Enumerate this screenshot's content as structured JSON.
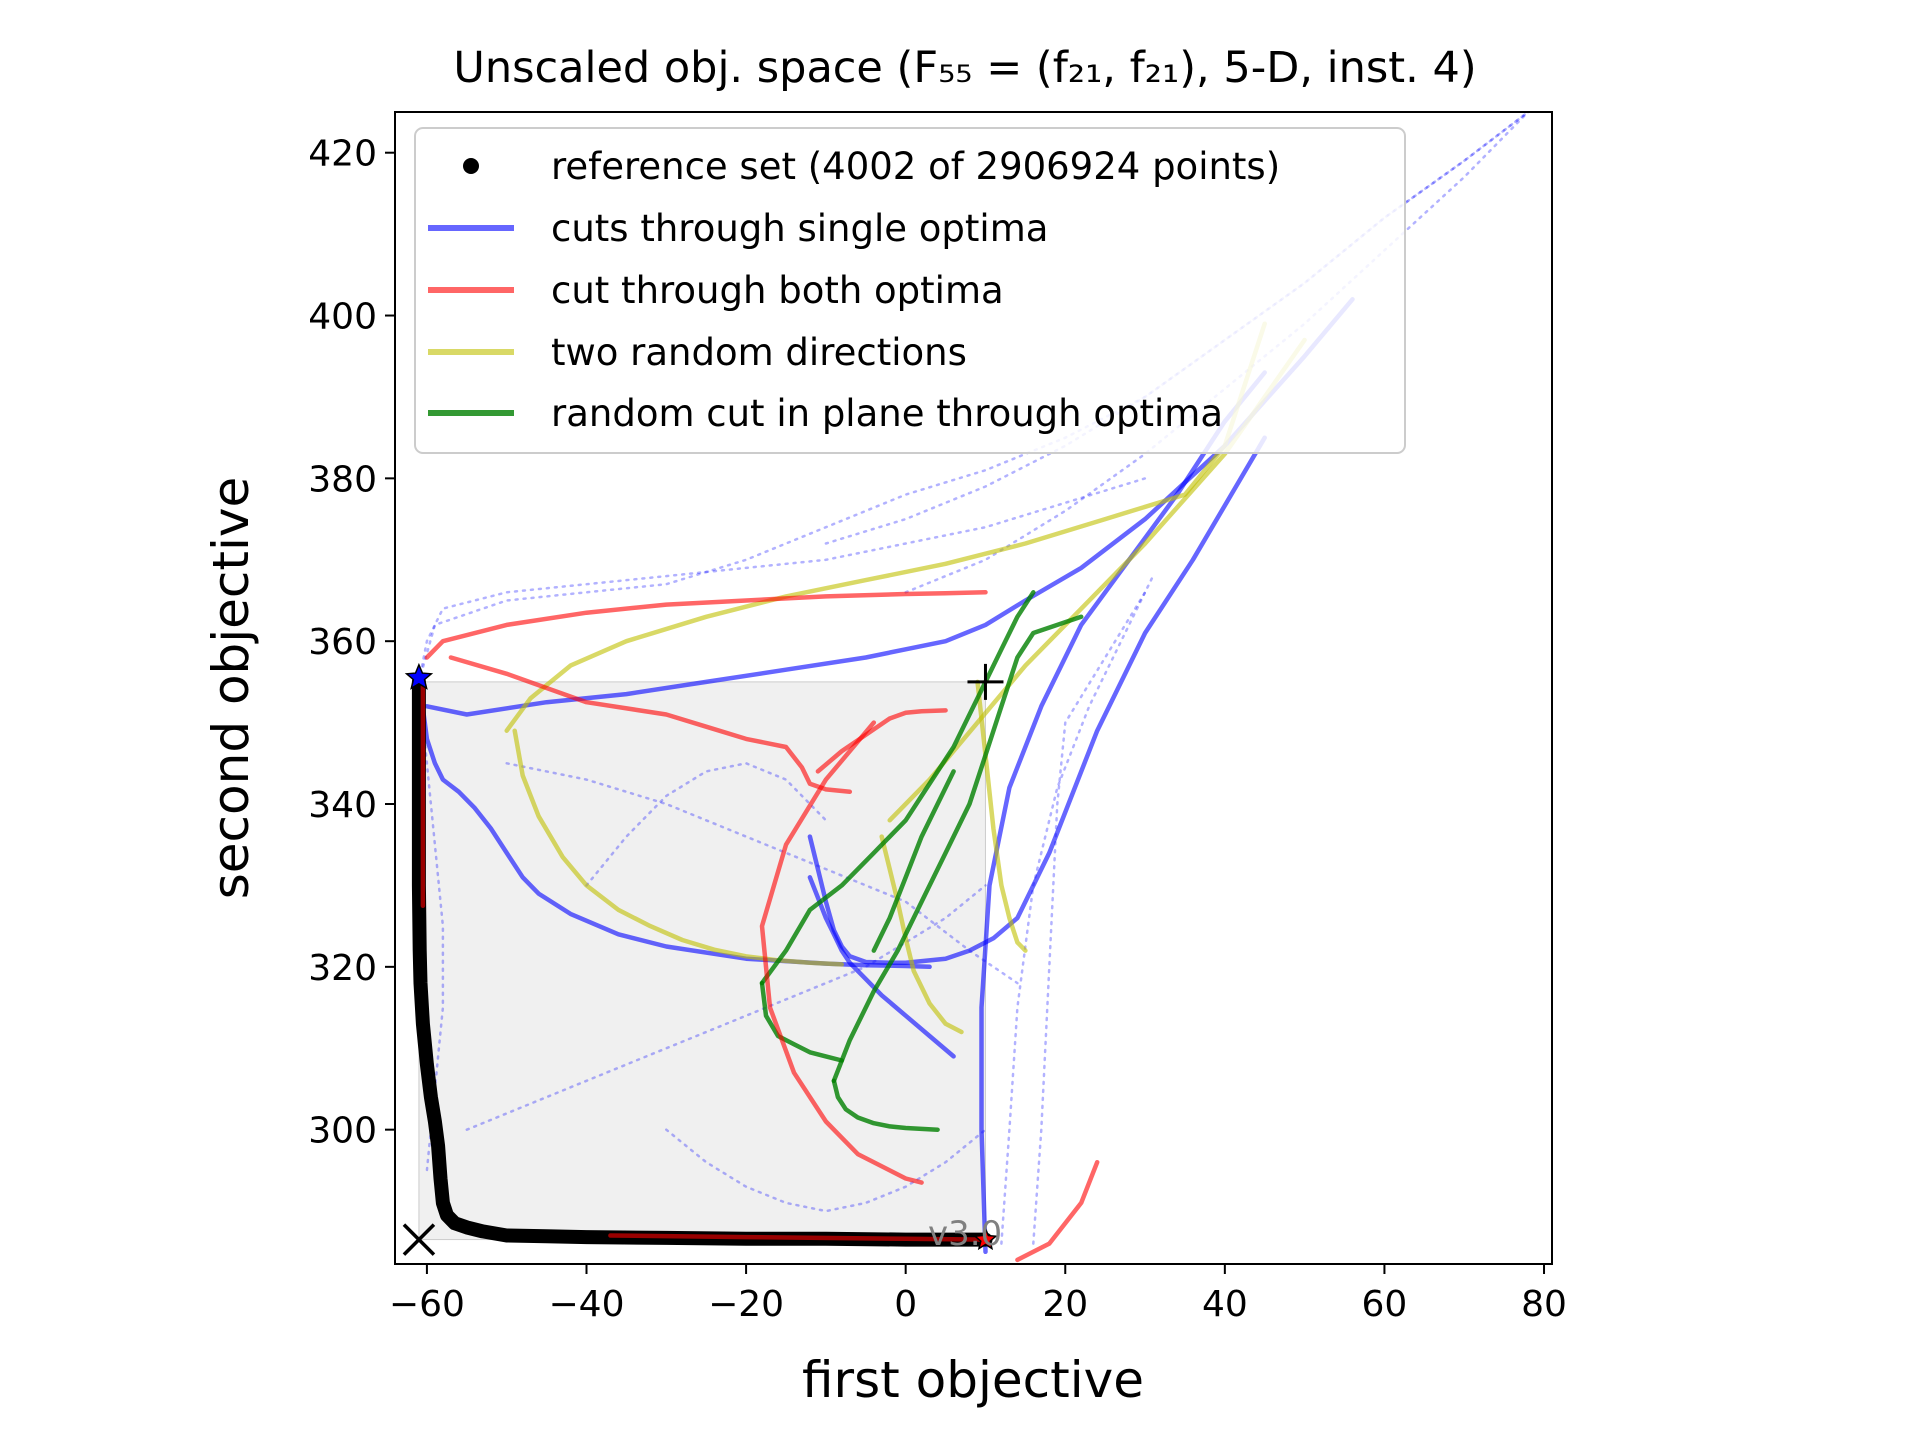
{
  "chart_data": {
    "type": "line",
    "title": "Unscaled obj. space (F₅₅ = (f₂₁, f₂₁), 5-D, inst. 4)",
    "xlabel": "first objective",
    "ylabel": "second objective",
    "xlim": [
      -64,
      81
    ],
    "ylim": [
      283.5,
      425
    ],
    "xticks": [
      -60,
      -40,
      -20,
      0,
      20,
      40,
      60,
      80
    ],
    "xtick_labels": [
      "−60",
      "−40",
      "−20",
      "0",
      "20",
      "40",
      "60",
      "80"
    ],
    "yticks": [
      300,
      320,
      340,
      360,
      380,
      400,
      420
    ],
    "ytick_labels": [
      "300",
      "320",
      "340",
      "360",
      "380",
      "400",
      "420"
    ],
    "grid": false,
    "legend_position": "top",
    "version_text": "v3.0",
    "colors": {
      "reference": "#000000",
      "single_optima": "#0000ff",
      "both_optima": "#ff0000",
      "random_directions": "#bfbf00",
      "plane_cut": "#008000",
      "background_cuts": "#0000ff",
      "dominated_region": "#f0f0f0"
    },
    "legend": [
      {
        "label": "reference set (4002 of 2906924 points)",
        "kind": "dot",
        "color": "#000000"
      },
      {
        "label": "cuts through single optima",
        "kind": "line",
        "color": "#0000ff"
      },
      {
        "label": "cut through both optima",
        "kind": "line",
        "color": "#ff0000"
      },
      {
        "label": "two random directions",
        "kind": "line",
        "color": "#bfbf00"
      },
      {
        "label": "random cut in plane through optima",
        "kind": "line",
        "color": "#008000"
      }
    ],
    "markers": {
      "ideal_point": [
        -61,
        286.5
      ],
      "nadir_point": [
        10,
        355
      ],
      "optimum_1": [
        -61,
        355.5
      ],
      "optimum_2": [
        10,
        286.5
      ]
    },
    "dominated_region": {
      "x": [
        -61,
        10
      ],
      "y": [
        286.5,
        355
      ]
    },
    "series": [
      {
        "name": "reference set (4002 of 2906924 points)",
        "role": "reference",
        "x": [
          -61,
          -61,
          -61,
          -60.9,
          -60.8,
          -60.5,
          -60,
          -59.5,
          -59,
          -58.6,
          -58.3,
          -58,
          -57.5,
          -56.5,
          -55,
          -53,
          -50,
          -45,
          -40,
          -30,
          -20,
          -10,
          0,
          5,
          10
        ],
        "y": [
          355,
          345,
          330,
          322,
          318,
          313,
          308,
          304,
          301,
          298,
          294,
          291,
          289.5,
          288.5,
          288,
          287.5,
          287,
          286.9,
          286.8,
          286.7,
          286.6,
          286.6,
          286.5,
          286.5,
          286.5
        ]
      },
      {
        "role": "both_optima",
        "x": [
          -60.5,
          -60.5,
          -60.5
        ],
        "y": [
          355,
          340,
          327.5
        ]
      },
      {
        "role": "both_optima",
        "x": [
          -37,
          -20,
          0,
          10
        ],
        "y": [
          287,
          286.8,
          286.6,
          286.5
        ]
      },
      {
        "role": "both_optima",
        "x": [
          -60,
          -58,
          -50,
          -40,
          -30,
          -20,
          -10,
          0,
          5,
          10
        ],
        "y": [
          358,
          360,
          362,
          363.5,
          364.5,
          365,
          365.5,
          365.8,
          365.9,
          366
        ]
      },
      {
        "role": "both_optima",
        "x": [
          -57,
          -50,
          -40,
          -30,
          -25,
          -20,
          -15,
          -13,
          -12,
          -10,
          -7
        ],
        "y": [
          358,
          356,
          352.5,
          351,
          349.5,
          348,
          347,
          344.5,
          342.5,
          341.8,
          341.5
        ]
      },
      {
        "role": "both_optima",
        "x": [
          -11,
          -8,
          -5,
          -2,
          0,
          2,
          5
        ],
        "y": [
          344,
          346.5,
          348.5,
          350.5,
          351.2,
          351.4,
          351.5
        ]
      },
      {
        "role": "both_optima",
        "x": [
          -4,
          -10,
          -15,
          -18,
          -17,
          -14,
          -10,
          -6,
          0,
          2
        ],
        "y": [
          350,
          343,
          335,
          325,
          315,
          307,
          301,
          297,
          294,
          293.5
        ]
      },
      {
        "role": "both_optima",
        "x": [
          14,
          18,
          22,
          24
        ],
        "y": [
          284,
          286,
          291,
          296
        ]
      },
      {
        "role": "single_optima",
        "x": [
          -61,
          -60,
          -59,
          -58,
          -56,
          -54,
          -52,
          -50,
          -48,
          -46,
          -42,
          -36,
          -30,
          -20,
          -10,
          -5,
          0,
          3
        ],
        "y": [
          355.5,
          348,
          345,
          343,
          341.5,
          339.5,
          337,
          334,
          331,
          329,
          326.5,
          324,
          322.5,
          321,
          320.4,
          320.2,
          320.1,
          320
        ]
      },
      {
        "role": "single_optima",
        "x": [
          -12,
          -11,
          -10,
          -9,
          -8,
          -7,
          -5,
          -3,
          0,
          3,
          6
        ],
        "y": [
          331,
          328.5,
          326,
          324,
          322,
          320.5,
          318.5,
          316.5,
          314,
          311.5,
          309
        ]
      },
      {
        "role": "single_optima",
        "x": [
          -60,
          -55,
          -45,
          -35,
          -25,
          -15,
          -5,
          0,
          5,
          10,
          15,
          22,
          30,
          40,
          50,
          56
        ],
        "y": [
          352,
          351,
          352.5,
          353.5,
          355,
          356.5,
          358,
          359,
          360,
          362,
          365,
          369,
          375,
          384,
          395,
          402
        ]
      },
      {
        "role": "single_optima",
        "x": [
          -12,
          -11,
          -10,
          -9,
          -8,
          -7,
          -5,
          -2,
          0,
          5,
          8,
          11,
          14,
          18,
          24,
          30,
          36,
          42,
          45
        ],
        "y": [
          336,
          332,
          328,
          324.5,
          322.5,
          321.3,
          320.6,
          320.5,
          320.5,
          321,
          322,
          323.5,
          326,
          334,
          349,
          361,
          370,
          380,
          385
        ]
      },
      {
        "role": "single_optima",
        "x": [
          10,
          9.5,
          9.5,
          10.5,
          13,
          17,
          22,
          28,
          34,
          40,
          45
        ],
        "y": [
          285,
          300,
          315,
          330,
          342,
          352,
          362,
          370,
          378,
          387,
          393
        ]
      },
      {
        "role": "random_directions",
        "x": [
          -49,
          -48,
          -46,
          -43,
          -40,
          -36,
          -32,
          -28,
          -24,
          -20,
          -16,
          -12,
          -8
        ],
        "y": [
          349,
          343.5,
          338.5,
          333.5,
          330,
          327,
          325,
          323.3,
          322.1,
          321.3,
          320.8,
          320.5,
          320.3
        ]
      },
      {
        "role": "random_directions",
        "x": [
          -3,
          -2,
          -1,
          0,
          1,
          3,
          5,
          7
        ],
        "y": [
          336,
          332,
          328,
          323.5,
          319.5,
          315.5,
          313,
          312
        ]
      },
      {
        "role": "random_directions",
        "x": [
          -50,
          -47,
          -42,
          -35,
          -25,
          -15,
          -5,
          5,
          15,
          25,
          35,
          40,
          45
        ],
        "y": [
          349,
          353,
          357,
          360,
          363,
          365.5,
          367.5,
          369.5,
          372,
          375,
          378,
          384,
          399
        ]
      },
      {
        "role": "random_directions",
        "x": [
          -2,
          0,
          3,
          6,
          9,
          12,
          15,
          20,
          30,
          40,
          50
        ],
        "y": [
          338,
          340,
          343,
          346.5,
          350,
          353.5,
          357,
          362,
          372,
          383,
          397
        ]
      },
      {
        "role": "random_directions",
        "x": [
          9,
          10,
          11,
          12,
          13,
          14,
          15
        ],
        "y": [
          355,
          346,
          337,
          330,
          326,
          323,
          322
        ]
      },
      {
        "role": "plane_cut",
        "x": [
          -18,
          -17.5,
          -16,
          -14,
          -12,
          -10,
          -8
        ],
        "y": [
          318,
          314,
          311.5,
          310.5,
          309.5,
          309,
          308.5
        ]
      },
      {
        "role": "plane_cut",
        "x": [
          -9,
          -8.5,
          -7.5,
          -6,
          -4,
          -2,
          0,
          2,
          4
        ],
        "y": [
          306,
          304,
          302.5,
          301.5,
          300.8,
          300.4,
          300.2,
          300.1,
          300
        ]
      },
      {
        "role": "plane_cut",
        "x": [
          -18,
          -15,
          -12,
          -8,
          -4,
          0,
          2,
          4,
          6,
          8,
          10,
          12,
          14,
          16
        ],
        "y": [
          318,
          322,
          327,
          330,
          334,
          338,
          341,
          344,
          347,
          351,
          355,
          359,
          363,
          366
        ]
      },
      {
        "role": "plane_cut",
        "x": [
          -9,
          -7,
          -4,
          -1,
          2,
          5,
          8,
          10,
          12,
          14,
          16,
          19,
          22
        ],
        "y": [
          306,
          311,
          317,
          322,
          328,
          334,
          340,
          346,
          352,
          358,
          361,
          362,
          363
        ]
      },
      {
        "role": "plane_cut",
        "x": [
          -4,
          -2,
          0,
          2,
          4,
          6
        ],
        "y": [
          322,
          326,
          331,
          336,
          340,
          344
        ]
      },
      {
        "role": "background_cuts",
        "x": [
          -61,
          -60,
          -58,
          -50,
          -40,
          -30,
          -20,
          -10,
          0,
          10,
          20,
          30
        ],
        "y": [
          355,
          360,
          364,
          366,
          367,
          368,
          369,
          370,
          372,
          374,
          377,
          380
        ]
      },
      {
        "role": "background_cuts",
        "x": [
          -61,
          -59,
          -50,
          -40,
          -30,
          -20,
          -10,
          0,
          10,
          20,
          30,
          40,
          50,
          60,
          70,
          78
        ],
        "y": [
          355,
          362,
          365,
          366,
          367,
          370,
          374,
          378,
          381,
          385,
          390,
          397,
          404,
          412,
          419,
          425
        ]
      },
      {
        "role": "background_cuts",
        "x": [
          -10,
          0,
          10,
          20,
          30,
          40,
          50,
          60,
          70,
          78
        ],
        "y": [
          372,
          375,
          379,
          384,
          390,
          397,
          404,
          412,
          419,
          425
        ]
      },
      {
        "role": "background_cuts",
        "x": [
          0,
          10,
          20,
          30,
          40,
          50,
          60,
          70,
          78
        ],
        "y": [
          366,
          370,
          376,
          383,
          391,
          399,
          408,
          417,
          425
        ]
      },
      {
        "role": "background_cuts",
        "x": [
          -61,
          -60,
          -59,
          -58,
          -58,
          -59,
          -60
        ],
        "y": [
          355,
          345,
          335,
          325,
          315,
          305,
          295
        ]
      },
      {
        "role": "background_cuts",
        "x": [
          -55,
          -45,
          -35,
          -25,
          -15,
          -5,
          5,
          10
        ],
        "y": [
          300,
          304,
          308,
          312,
          316,
          320,
          326,
          330
        ]
      },
      {
        "role": "background_cuts",
        "x": [
          -50,
          -40,
          -30,
          -20,
          -10,
          0,
          8,
          14
        ],
        "y": [
          345,
          343,
          340,
          336,
          332,
          328,
          322,
          318
        ]
      },
      {
        "role": "background_cuts",
        "x": [
          16,
          17,
          18,
          19,
          20,
          25,
          30
        ],
        "y": [
          286,
          300,
          320,
          340,
          350,
          358,
          366
        ]
      },
      {
        "role": "background_cuts",
        "x": [
          12,
          13,
          14,
          16,
          19,
          23,
          27,
          31
        ],
        "y": [
          286,
          300,
          315,
          330,
          342,
          352,
          360,
          368
        ]
      },
      {
        "role": "background_cuts",
        "x": [
          -30,
          -25,
          -20,
          -15,
          -10,
          -5,
          0,
          5,
          10
        ],
        "y": [
          300,
          296,
          293,
          291,
          290,
          291,
          293,
          296,
          300
        ]
      },
      {
        "role": "background_cuts",
        "x": [
          -40,
          -35,
          -30,
          -25,
          -20,
          -15,
          -10
        ],
        "y": [
          330,
          336,
          341,
          344,
          345,
          343,
          338
        ]
      }
    ]
  }
}
